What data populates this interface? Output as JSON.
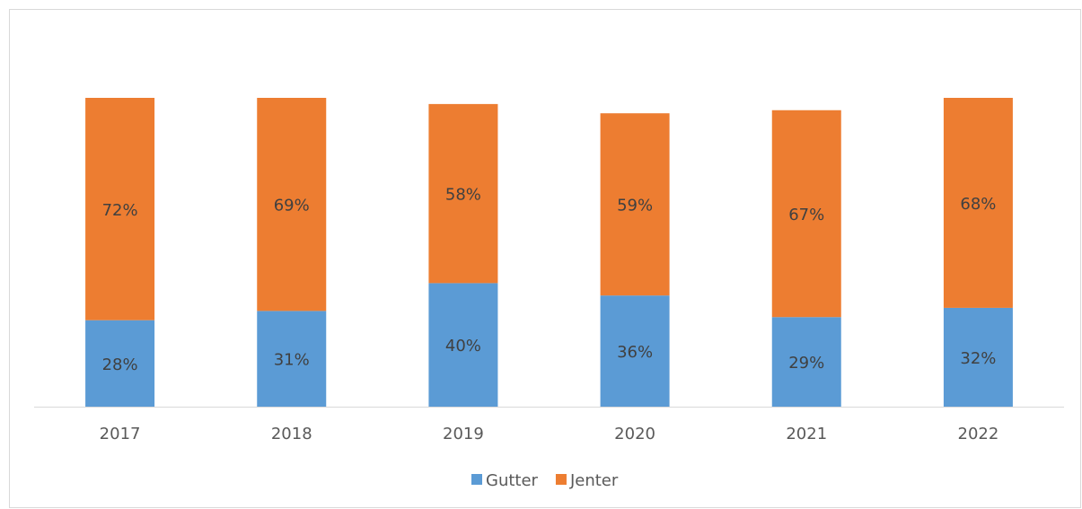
{
  "chart_data": {
    "type": "stacked_bar",
    "categories": [
      "2017",
      "2018",
      "2019",
      "2020",
      "2021",
      "2022"
    ],
    "series": [
      {
        "name": "Gutter",
        "color": "#5b9bd5",
        "values": [
          28,
          31,
          40,
          36,
          29,
          32
        ],
        "value_labels": [
          "28%",
          "31%",
          "40%",
          "36%",
          "29%",
          "32%"
        ]
      },
      {
        "name": "Jenter",
        "color": "#ed7d31",
        "values": [
          72,
          69,
          58,
          59,
          67,
          68
        ],
        "value_labels": [
          "72%",
          "69%",
          "58%",
          "59%",
          "67%",
          "68%"
        ]
      }
    ],
    "legend": "bottom"
  }
}
